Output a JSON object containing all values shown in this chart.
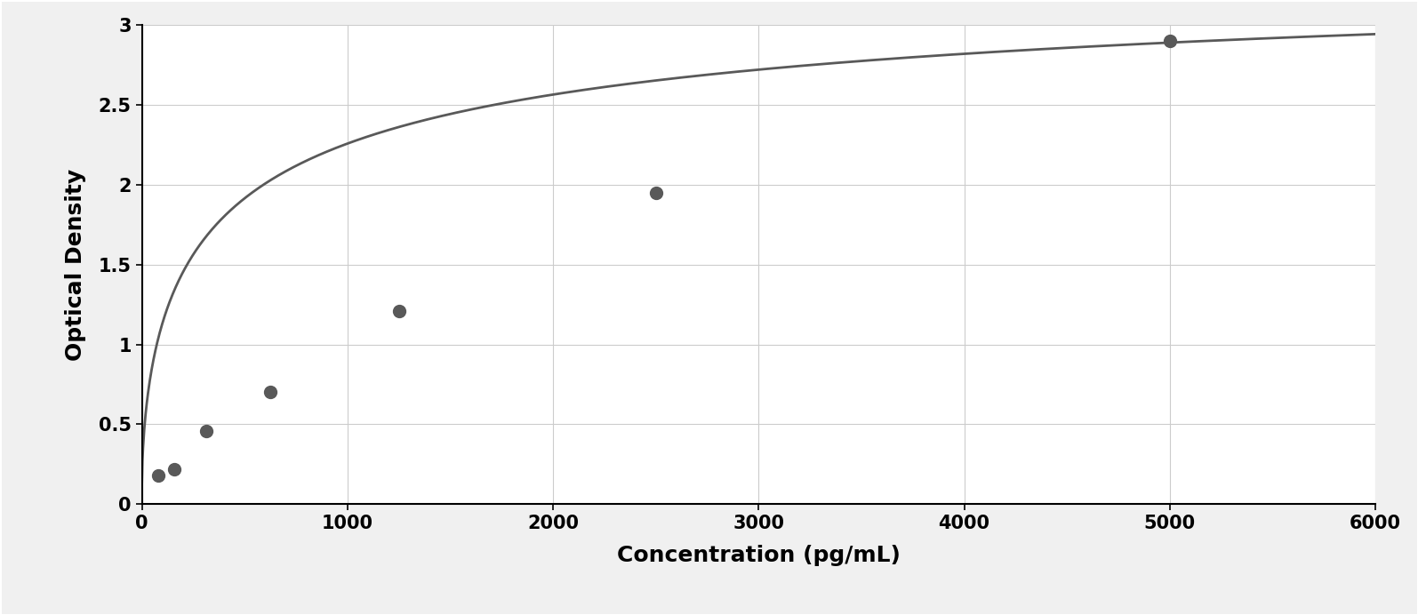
{
  "data_points_x": [
    78,
    156,
    313,
    625,
    1250,
    2500,
    5000
  ],
  "data_points_y": [
    0.18,
    0.22,
    0.46,
    0.7,
    1.21,
    1.95,
    2.9
  ],
  "xlabel": "Concentration (pg/mL)",
  "ylabel": "Optical Density",
  "xlim": [
    0,
    6000
  ],
  "ylim": [
    0,
    3.0
  ],
  "xticks": [
    0,
    1000,
    2000,
    3000,
    4000,
    5000,
    6000
  ],
  "yticks": [
    0,
    0.5,
    1.0,
    1.5,
    2.0,
    2.5,
    3.0
  ],
  "data_color": "#595959",
  "line_color": "#595959",
  "background_color": "#f0f0f0",
  "plot_bg_color": "#ffffff",
  "grid_color": "#cccccc",
  "outer_border_color": "#aaaaaa",
  "marker_size": 10,
  "line_width": 2.0,
  "xlabel_fontsize": 18,
  "ylabel_fontsize": 18,
  "tick_fontsize": 15,
  "xlabel_fontweight": "bold",
  "ylabel_fontweight": "bold"
}
